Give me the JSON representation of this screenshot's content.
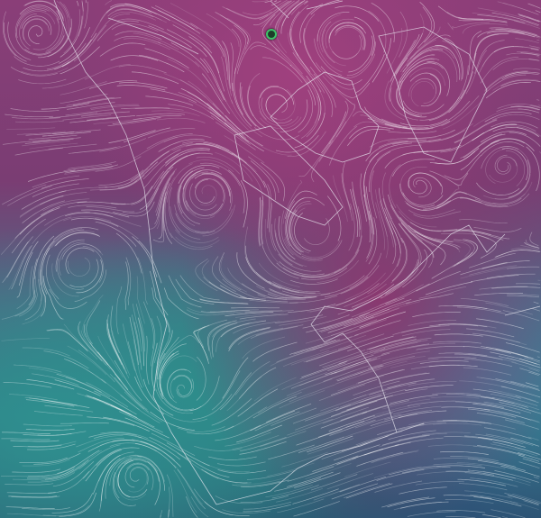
{
  "map": {
    "colors": {
      "cold_high": "#a0407e",
      "warm_low": "#2f8f8f",
      "ocean_deep": "#2c5f74",
      "streamline": "#ffffff",
      "coastline": "#e8e8f0"
    },
    "location_marker": {
      "icon": "location-ring-icon",
      "color": "#3ec46a",
      "visible": true
    }
  }
}
